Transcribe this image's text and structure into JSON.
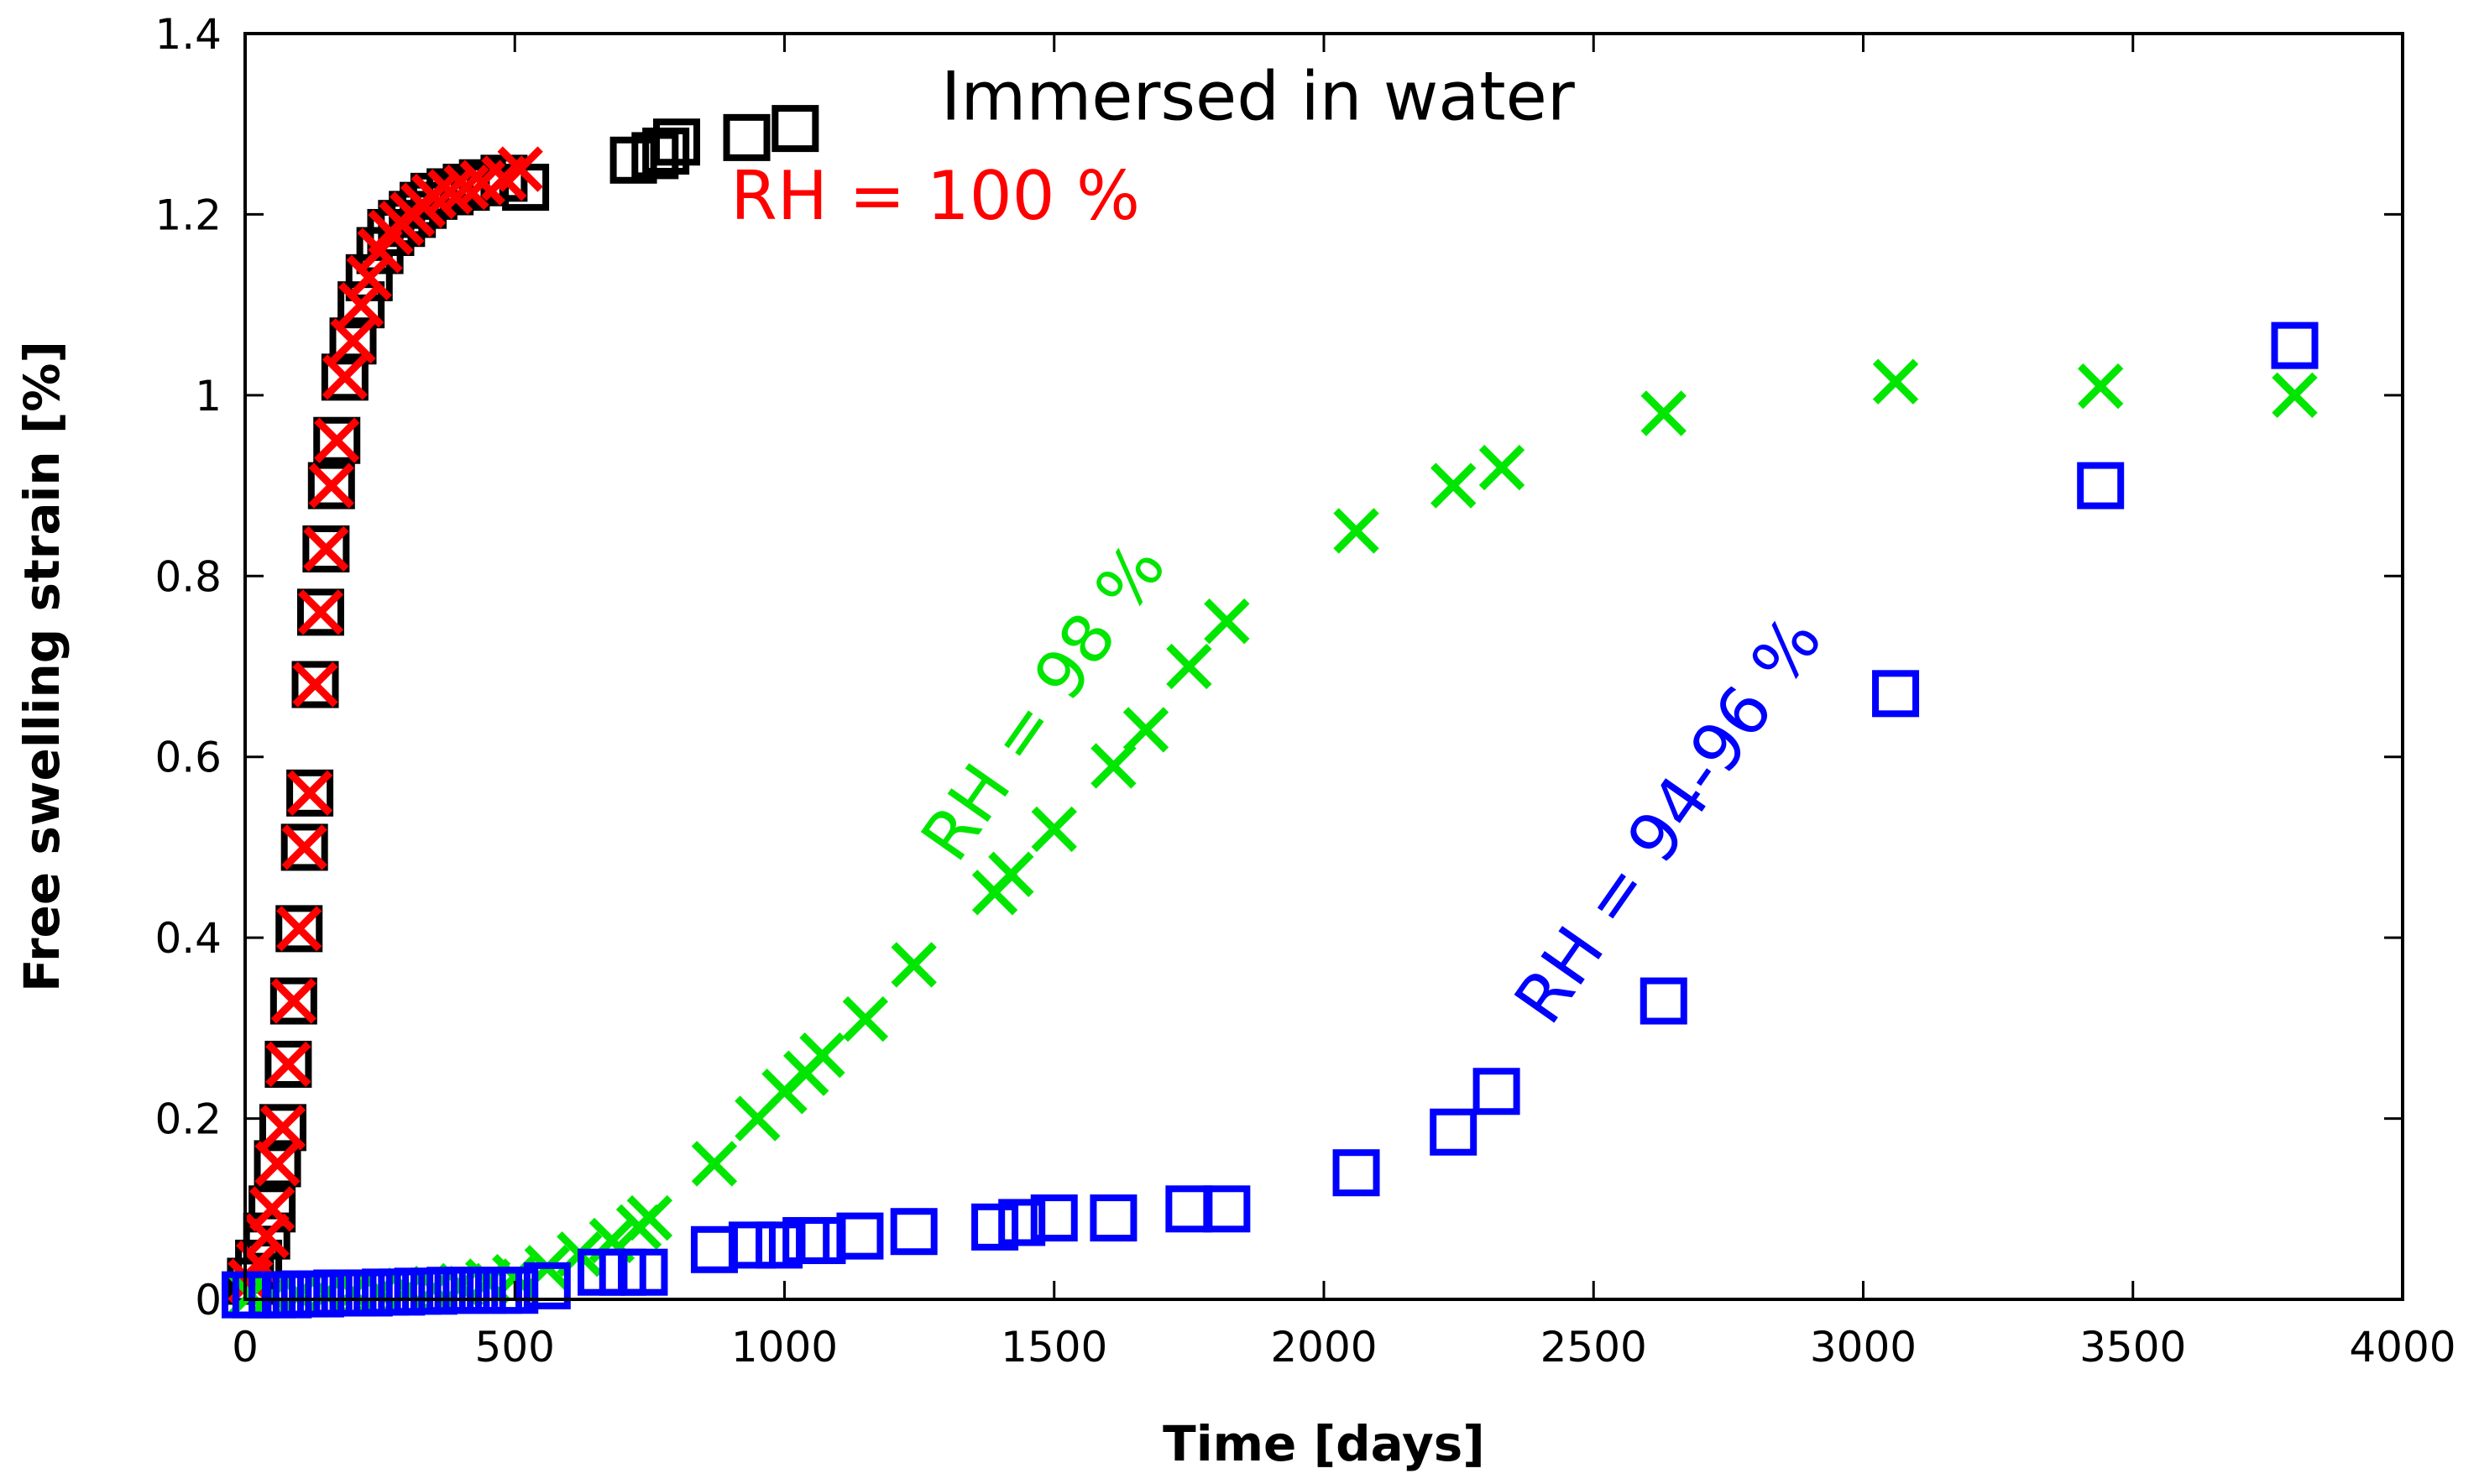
{
  "chart_data": {
    "type": "scatter",
    "title": "",
    "xlabel": "Time [days]",
    "ylabel": "Free swelling strain [%]",
    "xlim": [
      0,
      4000
    ],
    "ylim": [
      0,
      1.4
    ],
    "xticks": [
      0,
      500,
      1000,
      1500,
      2000,
      2500,
      3000,
      3500,
      4000
    ],
    "yticks": [
      0,
      0.2,
      0.4,
      0.6,
      0.8,
      1,
      1.2,
      1.4
    ],
    "xtick_labels": [
      "0",
      "500",
      "1000",
      "1500",
      "2000",
      "2500",
      "3000",
      "3500",
      "4000"
    ],
    "ytick_labels": [
      "0",
      "0.2",
      "0.4",
      "0.6",
      "0.8",
      "1",
      "1.2",
      "1.4"
    ],
    "grid": false,
    "series": [
      {
        "name": "Immersed in water",
        "marker": "square",
        "color": "#000000",
        "x": [
          10,
          25,
          40,
          50,
          60,
          70,
          80,
          90,
          100,
          110,
          120,
          130,
          140,
          150,
          160,
          170,
          185,
          200,
          215,
          230,
          250,
          270,
          290,
          310,
          330,
          350,
          380,
          410,
          440,
          480,
          520,
          720,
          760,
          780,
          800,
          930,
          1020
        ],
        "y": [
          0.02,
          0.04,
          0.07,
          0.1,
          0.15,
          0.19,
          0.26,
          0.33,
          0.41,
          0.5,
          0.56,
          0.68,
          0.76,
          0.83,
          0.9,
          0.95,
          1.02,
          1.06,
          1.1,
          1.13,
          1.16,
          1.18,
          1.19,
          1.2,
          1.21,
          1.22,
          1.225,
          1.23,
          1.235,
          1.24,
          1.23,
          1.26,
          1.265,
          1.27,
          1.28,
          1.285,
          1.295
        ]
      },
      {
        "name": "RH = 100 %",
        "marker": "x",
        "color": "#ff0000",
        "x": [
          10,
          25,
          40,
          50,
          60,
          70,
          80,
          90,
          100,
          110,
          120,
          130,
          140,
          150,
          160,
          170,
          185,
          200,
          215,
          230,
          250,
          270,
          290,
          310,
          330,
          350,
          380,
          410,
          440,
          480,
          510
        ],
        "y": [
          0.02,
          0.04,
          0.07,
          0.1,
          0.15,
          0.19,
          0.26,
          0.33,
          0.41,
          0.5,
          0.56,
          0.68,
          0.76,
          0.83,
          0.9,
          0.95,
          1.02,
          1.06,
          1.1,
          1.13,
          1.16,
          1.18,
          1.19,
          1.2,
          1.21,
          1.22,
          1.225,
          1.23,
          1.235,
          1.24,
          1.25
        ]
      },
      {
        "name": "RH = 98 %",
        "marker": "x",
        "color": "#00e600",
        "x": [
          10,
          50,
          100,
          150,
          200,
          250,
          300,
          350,
          400,
          450,
          500,
          560,
          620,
          680,
          730,
          750,
          870,
          950,
          1000,
          1040,
          1070,
          1150,
          1240,
          1390,
          1420,
          1500,
          1610,
          1670,
          1750,
          1820,
          2060,
          2240,
          2330,
          2630,
          3060,
          3440,
          3800
        ],
        "y": [
          0.005,
          0.005,
          0.005,
          0.006,
          0.008,
          0.008,
          0.01,
          0.012,
          0.015,
          0.02,
          0.025,
          0.035,
          0.05,
          0.065,
          0.08,
          0.09,
          0.15,
          0.2,
          0.23,
          0.25,
          0.27,
          0.31,
          0.37,
          0.45,
          0.47,
          0.52,
          0.59,
          0.63,
          0.7,
          0.75,
          0.85,
          0.9,
          0.92,
          0.98,
          1.015,
          1.01,
          1.0
        ]
      },
      {
        "name": "RH = 94-96 %",
        "marker": "square",
        "color": "#0000ff",
        "x": [
          0,
          20,
          50,
          80,
          110,
          140,
          170,
          200,
          230,
          260,
          290,
          320,
          350,
          380,
          410,
          440,
          470,
          500,
          560,
          660,
          700,
          740,
          870,
          940,
          990,
          1040,
          1070,
          1140,
          1240,
          1390,
          1440,
          1500,
          1610,
          1750,
          1820,
          2060,
          2240,
          2320,
          2630,
          3060,
          3440,
          3800
        ],
        "y": [
          0.005,
          0.005,
          0.005,
          0.005,
          0.006,
          0.006,
          0.007,
          0.007,
          0.007,
          0.008,
          0.008,
          0.009,
          0.009,
          0.01,
          0.01,
          0.01,
          0.01,
          0.01,
          0.015,
          0.03,
          0.03,
          0.03,
          0.055,
          0.06,
          0.06,
          0.065,
          0.065,
          0.07,
          0.075,
          0.08,
          0.085,
          0.09,
          0.09,
          0.1,
          0.1,
          0.14,
          0.185,
          0.23,
          0.33,
          0.67,
          0.9,
          1.055
        ]
      }
    ],
    "annotations": [
      {
        "text": "Immersed in water",
        "x": 1290,
        "y": 1.305,
        "color": "#000000",
        "angle": 0
      },
      {
        "text": "RH = 100 %",
        "x": 900,
        "y": 1.195,
        "color": "#ff0000",
        "angle": 0
      },
      {
        "text": "RH = 98 %",
        "x": 1320,
        "y": 0.48,
        "color": "#00e600",
        "angle": -55
      },
      {
        "text": "RH = 94-96 %",
        "x": 2420,
        "y": 0.3,
        "color": "#0000ff",
        "angle": -55
      }
    ]
  }
}
